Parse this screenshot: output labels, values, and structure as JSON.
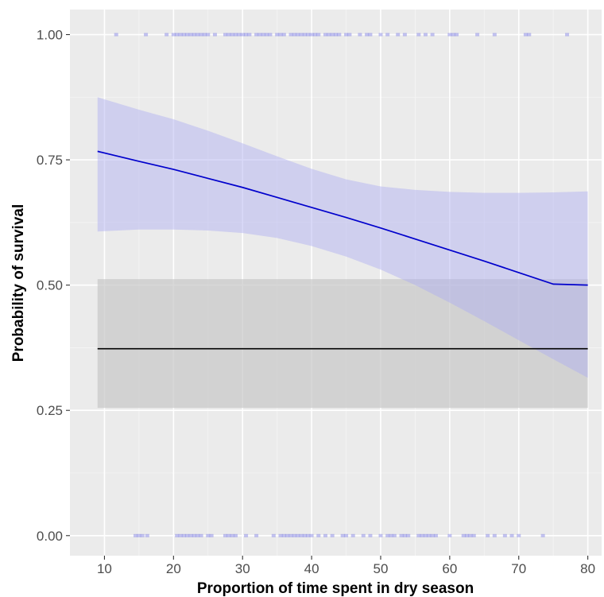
{
  "chart_data": {
    "type": "line",
    "title": "",
    "xlabel": "Proportion of time spent in dry season",
    "ylabel": "Probability of survival",
    "xlim": [
      5,
      82
    ],
    "ylim": [
      -0.04,
      1.05
    ],
    "x_ticks": [
      10,
      20,
      30,
      40,
      50,
      60,
      70,
      80
    ],
    "x_tick_labels": [
      "10",
      "20",
      "30",
      "40",
      "50",
      "60",
      "70",
      "80"
    ],
    "y_ticks": [
      0,
      0.25,
      0.5,
      0.75,
      1.0
    ],
    "y_tick_labels": [
      "0.00",
      "0.25",
      "0.50",
      "0.75",
      "1.00"
    ],
    "grid": true,
    "series": [
      {
        "kind": "logistic-fit",
        "color": "#0000cc",
        "ribbon_color": "#b0b0f0",
        "x": [
          9,
          15,
          20,
          25,
          30,
          35,
          40,
          45,
          50,
          55,
          60,
          65,
          70,
          75,
          80
        ],
        "y": [
          0.767,
          0.747,
          0.731,
          0.713,
          0.695,
          0.675,
          0.655,
          0.635,
          0.614,
          0.592,
          0.57,
          0.548,
          0.525,
          0.502,
          0.5
        ],
        "lower": [
          0.607,
          0.611,
          0.611,
          0.609,
          0.604,
          0.594,
          0.578,
          0.557,
          0.531,
          0.5,
          0.465,
          0.428,
          0.39,
          0.352,
          0.315
        ],
        "upper": [
          0.875,
          0.85,
          0.831,
          0.808,
          0.783,
          0.757,
          0.732,
          0.711,
          0.697,
          0.69,
          0.686,
          0.684,
          0.684,
          0.685,
          0.687
        ]
      },
      {
        "kind": "null-model",
        "color": "#000000",
        "ribbon_color": "#c8c8c8",
        "x": [
          9,
          80
        ],
        "y": [
          0.373,
          0.373
        ],
        "lower": [
          0.255,
          0.255
        ],
        "upper": [
          0.512,
          0.512
        ]
      }
    ],
    "points": {
      "color": "#5555dd",
      "survived_y": 1,
      "died_y": 0,
      "survived_x": [
        11.7,
        16,
        19,
        20,
        20.5,
        21,
        21.5,
        22,
        22.5,
        23,
        23.5,
        24,
        24.5,
        25,
        26,
        27.5,
        28,
        28.5,
        29,
        29.5,
        30,
        30.5,
        31,
        32,
        32.5,
        33,
        33.5,
        34,
        35,
        35.5,
        36,
        37,
        37.5,
        38,
        38.5,
        39,
        39.5,
        40,
        40.5,
        41,
        42,
        42.5,
        43,
        43.5,
        44,
        45,
        45.5,
        47,
        48,
        48.5,
        50,
        51,
        52.5,
        53.5,
        55.5,
        56.5,
        57.5,
        60,
        60.5,
        61,
        64,
        66.5,
        71,
        71.5,
        77
      ],
      "died_x": [
        14.5,
        15,
        15.5,
        16.2,
        20.5,
        21,
        21.5,
        22,
        22.5,
        23,
        23.5,
        24,
        25,
        25.5,
        27.5,
        28,
        28.5,
        29,
        30.5,
        32,
        34.5,
        35.5,
        36,
        36.5,
        37,
        37.5,
        38,
        38.5,
        39,
        39.5,
        40,
        41,
        42,
        43,
        44.5,
        45,
        46,
        47.5,
        48.5,
        50,
        51,
        51.5,
        52,
        53,
        53.5,
        54,
        55.5,
        56,
        56.5,
        57,
        57.5,
        58,
        60,
        62,
        62.5,
        63,
        63.5,
        65.5,
        66.5,
        68,
        69,
        70,
        73.5
      ]
    }
  }
}
